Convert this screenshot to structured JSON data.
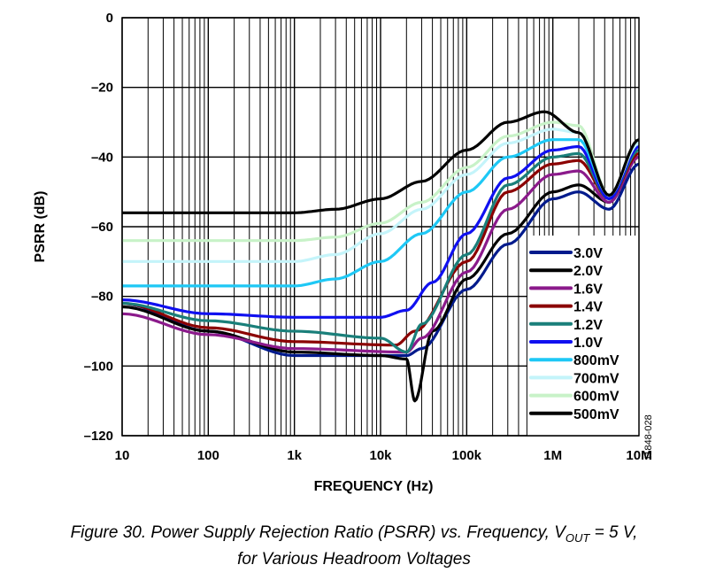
{
  "chart_data": {
    "type": "line",
    "xlabel": "FREQUENCY (Hz)",
    "ylabel": "PSRR (dB)",
    "xscale": "log",
    "xlim": [
      10,
      10000000
    ],
    "ylim": [
      -120,
      0
    ],
    "xticks": [
      {
        "v": 10,
        "label": "10"
      },
      {
        "v": 100,
        "label": "100"
      },
      {
        "v": 1000,
        "label": "1k"
      },
      {
        "v": 10000,
        "label": "10k"
      },
      {
        "v": 100000,
        "label": "100k"
      },
      {
        "v": 1000000,
        "label": "1M"
      },
      {
        "v": 10000000,
        "label": "10M"
      }
    ],
    "yticks": [
      {
        "v": 0,
        "label": "0"
      },
      {
        "v": -20,
        "label": "–20"
      },
      {
        "v": -40,
        "label": "–40"
      },
      {
        "v": -60,
        "label": "–60"
      },
      {
        "v": -80,
        "label": "–80"
      },
      {
        "v": -100,
        "label": "–100"
      },
      {
        "v": -120,
        "label": "–120"
      }
    ],
    "grid": true,
    "legend_position": "bottom-right",
    "series": [
      {
        "name": "3.0V",
        "color": "#001a8c",
        "points": [
          [
            10,
            -82
          ],
          [
            100,
            -90
          ],
          [
            1000,
            -97
          ],
          [
            20000,
            -97
          ],
          [
            30000,
            -95
          ],
          [
            100000,
            -78
          ],
          [
            300000,
            -65
          ],
          [
            1000000,
            -52
          ],
          [
            2000000,
            -50
          ],
          [
            4500000,
            -55
          ],
          [
            10000000,
            -42
          ]
        ]
      },
      {
        "name": "2.0V",
        "color": "#000000",
        "points": [
          [
            10,
            -83
          ],
          [
            100,
            -90
          ],
          [
            1000,
            -96
          ],
          [
            10000,
            -97
          ],
          [
            20000,
            -98
          ],
          [
            25000,
            -110
          ],
          [
            40000,
            -90
          ],
          [
            100000,
            -75
          ],
          [
            300000,
            -62
          ],
          [
            1000000,
            -50
          ],
          [
            2000000,
            -48
          ],
          [
            4500000,
            -53
          ],
          [
            10000000,
            -40
          ]
        ]
      },
      {
        "name": "1.6V",
        "color": "#8b1a8b",
        "points": [
          [
            10,
            -85
          ],
          [
            100,
            -91
          ],
          [
            1000,
            -95
          ],
          [
            20000,
            -96
          ],
          [
            30000,
            -92
          ],
          [
            100000,
            -73
          ],
          [
            300000,
            -55
          ],
          [
            1000000,
            -45
          ],
          [
            2000000,
            -44
          ],
          [
            4500000,
            -53
          ],
          [
            10000000,
            -40
          ]
        ]
      },
      {
        "name": "1.4V",
        "color": "#8b0000",
        "points": [
          [
            10,
            -82
          ],
          [
            100,
            -89
          ],
          [
            1000,
            -93
          ],
          [
            15000,
            -94
          ],
          [
            25000,
            -90
          ],
          [
            100000,
            -70
          ],
          [
            300000,
            -50
          ],
          [
            1000000,
            -42
          ],
          [
            2000000,
            -41
          ],
          [
            4500000,
            -52
          ],
          [
            10000000,
            -39
          ]
        ]
      },
      {
        "name": "1.2V",
        "color": "#1a7f7a",
        "points": [
          [
            10,
            -82
          ],
          [
            100,
            -87
          ],
          [
            1000,
            -90
          ],
          [
            10000,
            -92
          ],
          [
            20000,
            -96
          ],
          [
            30000,
            -88
          ],
          [
            100000,
            -68
          ],
          [
            300000,
            -48
          ],
          [
            1000000,
            -40
          ],
          [
            2000000,
            -39
          ],
          [
            4500000,
            -52
          ],
          [
            10000000,
            -38
          ]
        ]
      },
      {
        "name": "1.0V",
        "color": "#1010f0",
        "points": [
          [
            10,
            -81
          ],
          [
            100,
            -85
          ],
          [
            1000,
            -86
          ],
          [
            10000,
            -86
          ],
          [
            20000,
            -84
          ],
          [
            40000,
            -76
          ],
          [
            100000,
            -62
          ],
          [
            300000,
            -46
          ],
          [
            1000000,
            -38
          ],
          [
            2000000,
            -37
          ],
          [
            4500000,
            -52
          ],
          [
            10000000,
            -37
          ]
        ]
      },
      {
        "name": "800mV",
        "color": "#1ec8f5",
        "points": [
          [
            10,
            -77
          ],
          [
            1000,
            -77
          ],
          [
            3000,
            -75
          ],
          [
            10000,
            -70
          ],
          [
            30000,
            -62
          ],
          [
            100000,
            -50
          ],
          [
            300000,
            -40
          ],
          [
            1000000,
            -35
          ],
          [
            2000000,
            -35
          ],
          [
            4500000,
            -51
          ],
          [
            10000000,
            -36
          ]
        ]
      },
      {
        "name": "700mV",
        "color": "#c4f4fa",
        "points": [
          [
            10,
            -70
          ],
          [
            1000,
            -70
          ],
          [
            3000,
            -68
          ],
          [
            10000,
            -62
          ],
          [
            30000,
            -55
          ],
          [
            100000,
            -45
          ],
          [
            300000,
            -36
          ],
          [
            1000000,
            -32
          ],
          [
            2000000,
            -33
          ],
          [
            4500000,
            -51
          ],
          [
            10000000,
            -36
          ]
        ]
      },
      {
        "name": "600mV",
        "color": "#c8f2c8",
        "points": [
          [
            10,
            -64
          ],
          [
            1000,
            -64
          ],
          [
            3000,
            -63
          ],
          [
            10000,
            -59
          ],
          [
            30000,
            -53
          ],
          [
            100000,
            -43
          ],
          [
            300000,
            -34
          ],
          [
            1000000,
            -30
          ],
          [
            2000000,
            -31
          ],
          [
            4500000,
            -51
          ],
          [
            10000000,
            -35
          ]
        ]
      },
      {
        "name": "500mV",
        "color": "#000000",
        "points": [
          [
            10,
            -56
          ],
          [
            100,
            -56
          ],
          [
            1000,
            -56
          ],
          [
            3000,
            -55
          ],
          [
            10000,
            -52
          ],
          [
            30000,
            -47
          ],
          [
            100000,
            -38
          ],
          [
            300000,
            -30
          ],
          [
            800000,
            -27
          ],
          [
            2000000,
            -33
          ],
          [
            4500000,
            -51
          ],
          [
            10000000,
            -35
          ]
        ]
      }
    ]
  },
  "caption": {
    "line1_prefix": "Figure 30. Power Supply Rejection Ratio (PSRR) vs. Frequency, V",
    "line1_sub": "OUT",
    "line1_suffix": " = 5 V,",
    "line2": "for Various Headroom Voltages"
  },
  "figure_id": "11848-028"
}
